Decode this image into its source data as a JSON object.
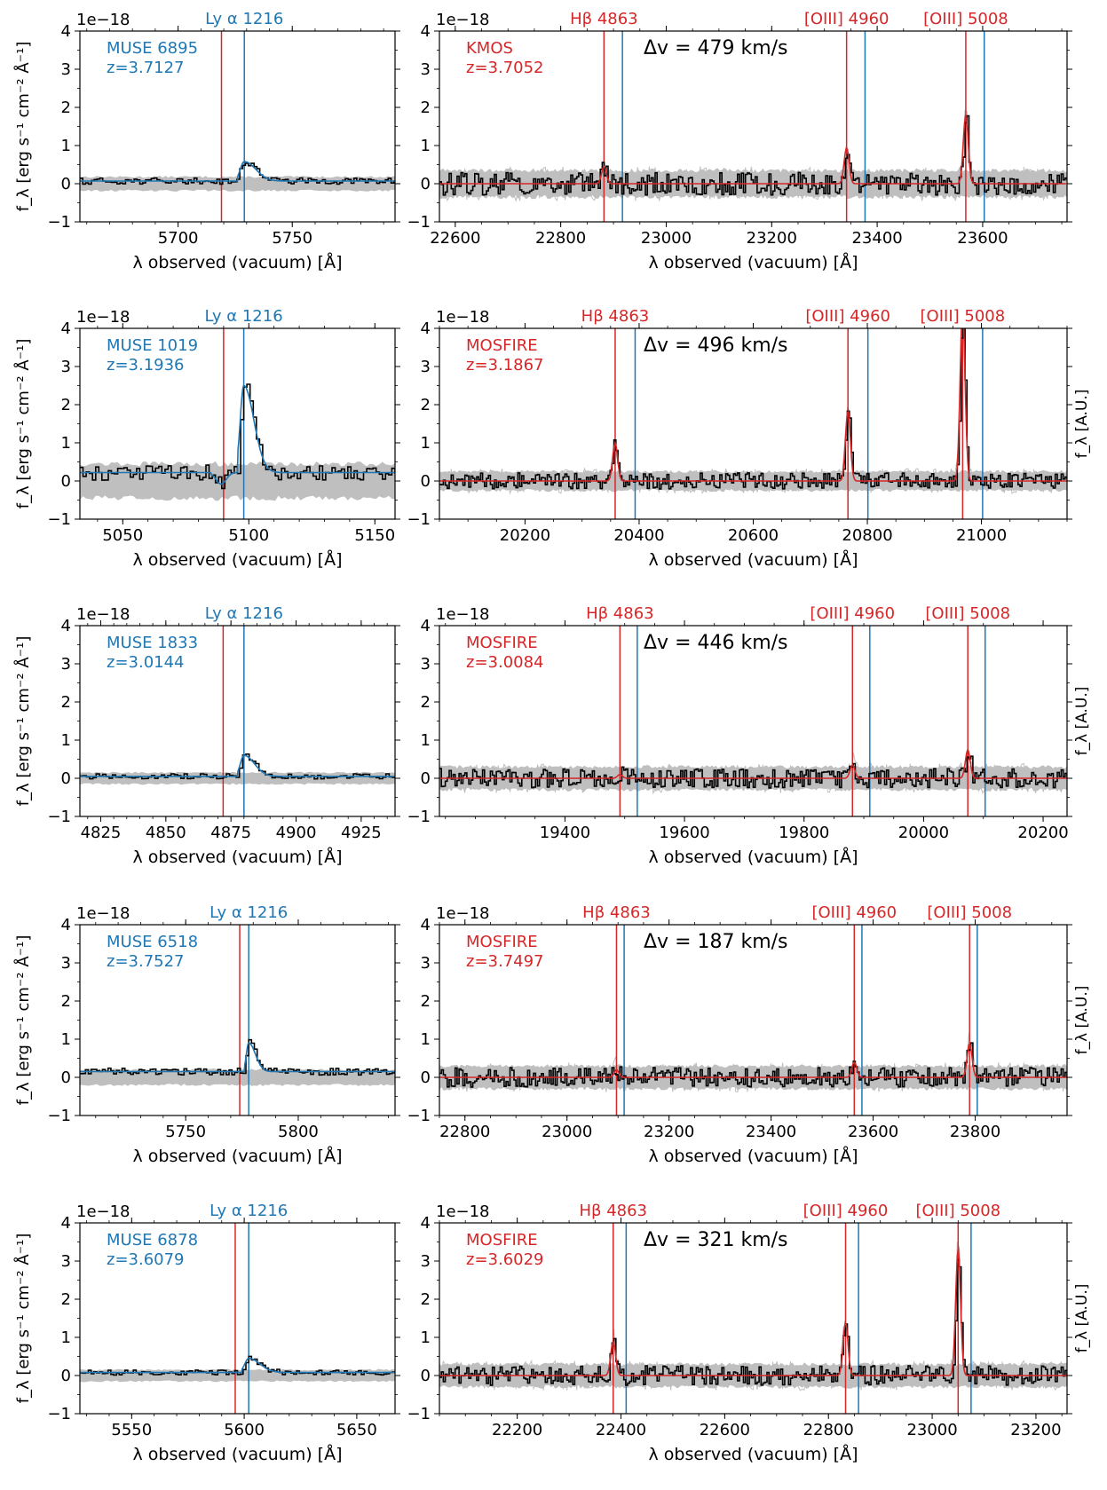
{
  "figure": {
    "x_axis_label": "λ observed (vacuum) [Å]",
    "y_axis_label_left": "f_λ [erg s⁻¹ cm⁻² Å⁻¹]",
    "y_axis_label_right": "f_λ [A.U.]",
    "offset_text": "1e−18",
    "colors": {
      "muse": "#1f77b4",
      "nir": "#d62728",
      "data": "#000000",
      "noise": "#bfbfbf"
    }
  },
  "chart_data": [
    {
      "type": "line",
      "row": 1,
      "panel": "left",
      "instrument": "MUSE 6895",
      "redshift": "z=3.7127",
      "line_label": "Ly α 1216",
      "xlim": [
        5657,
        5795
      ],
      "ylim": [
        -1,
        4
      ],
      "xticks": [
        5700,
        5750
      ],
      "yticks": [
        -1,
        0,
        1,
        2,
        3,
        4
      ],
      "ly_alpha_obs": 5729,
      "systemic_line": 5719,
      "peak": {
        "x": 5729,
        "y": 0.58,
        "width": 5
      },
      "continuum": 0.07,
      "noise_level": 0.18,
      "xlabel": "λ observed (vacuum) [Å]",
      "ylabel": "f_λ [erg s⁻¹ cm⁻² Å⁻¹]"
    },
    {
      "type": "line",
      "row": 1,
      "panel": "right",
      "instrument": "KMOS",
      "redshift": "z=3.7052",
      "delta_v": "Δv = 479 km/s",
      "line_labels": [
        "Hβ 4863",
        "[OIII] 4960",
        "[OIII] 5008"
      ],
      "xlim": [
        22570,
        23760
      ],
      "ylim": [
        -1,
        4
      ],
      "xticks": [
        22600,
        22800,
        23000,
        23200,
        23400,
        23600
      ],
      "yticks": [
        -1,
        0,
        1,
        2,
        3,
        4
      ],
      "red_lines": [
        22882,
        23342,
        23568
      ],
      "blue_lines": [
        22917,
        23377,
        23603
      ],
      "peaks": [
        {
          "x": 22882,
          "y": 0.45
        },
        {
          "x": 23342,
          "y": 0.95
        },
        {
          "x": 23568,
          "y": 1.8
        }
      ],
      "noise_level": 0.35,
      "xlabel": "λ observed (vacuum) [Å]"
    },
    {
      "type": "line",
      "row": 2,
      "panel": "left",
      "instrument": "MUSE 1019",
      "redshift": "z=3.1936",
      "line_label": "Ly α 1216",
      "xlim": [
        5033,
        5158
      ],
      "ylim": [
        -1,
        4
      ],
      "xticks": [
        5050,
        5100,
        5150
      ],
      "yticks": [
        -1,
        0,
        1,
        2,
        3,
        4
      ],
      "ly_alpha_obs": 5098,
      "systemic_line": 5090,
      "peak": {
        "x": 5098,
        "y": 2.5,
        "width": 4
      },
      "continuum": 0.22,
      "noise_level": 0.45,
      "xlabel": "λ observed (vacuum) [Å]",
      "ylabel": "f_λ [erg s⁻¹ cm⁻² Å⁻¹]"
    },
    {
      "type": "line",
      "row": 2,
      "panel": "right",
      "instrument": "MOSFIRE",
      "redshift": "z=3.1867",
      "delta_v": "Δv = 496 km/s",
      "line_labels": [
        "Hβ 4863",
        "[OIII] 4960",
        "[OIII] 5008"
      ],
      "xlim": [
        20050,
        21150
      ],
      "ylim": [
        -1,
        4
      ],
      "xticks": [
        20200,
        20400,
        20600,
        20800,
        21000
      ],
      "yticks": [
        -1,
        0,
        1,
        2,
        3,
        4
      ],
      "red_lines": [
        20358,
        20766,
        20967
      ],
      "blue_lines": [
        20393,
        20801,
        21002
      ],
      "peaks": [
        {
          "x": 20358,
          "y": 1.0
        },
        {
          "x": 20766,
          "y": 1.85
        },
        {
          "x": 20967,
          "y": 4.6
        }
      ],
      "noise_level": 0.25,
      "xlabel": "λ observed (vacuum) [Å]",
      "ylabel_right": "f_λ [A.U.]"
    },
    {
      "type": "line",
      "row": 3,
      "panel": "left",
      "instrument": "MUSE 1833",
      "redshift": "z=3.0144",
      "line_label": "Ly α 1216",
      "xlim": [
        4817,
        4938
      ],
      "ylim": [
        -1,
        4
      ],
      "xticks": [
        4825,
        4850,
        4875,
        4900,
        4925
      ],
      "yticks": [
        -1,
        0,
        1,
        2,
        3,
        4
      ],
      "ly_alpha_obs": 4880,
      "systemic_line": 4872,
      "peak": {
        "x": 4880,
        "y": 0.6,
        "width": 4
      },
      "continuum": 0.05,
      "noise_level": 0.15,
      "xlabel": "λ observed (vacuum) [Å]",
      "ylabel": "f_λ [erg s⁻¹ cm⁻² Å⁻¹]"
    },
    {
      "type": "line",
      "row": 3,
      "panel": "right",
      "instrument": "MOSFIRE",
      "redshift": "z=3.0084",
      "delta_v": "Δv = 446 km/s",
      "line_labels": [
        "Hβ 4863",
        "[OIII] 4960",
        "[OIII] 5008"
      ],
      "xlim": [
        19190,
        20240
      ],
      "ylim": [
        -1,
        4
      ],
      "xticks": [
        19400,
        19600,
        19800,
        20000,
        20200
      ],
      "yticks": [
        -1,
        0,
        1,
        2,
        3,
        4
      ],
      "red_lines": [
        19492,
        19881,
        20074
      ],
      "blue_lines": [
        19521,
        19910,
        20103
      ],
      "peaks": [
        {
          "x": 19492,
          "y": 0.1
        },
        {
          "x": 19881,
          "y": 0.35
        },
        {
          "x": 20074,
          "y": 0.75
        }
      ],
      "noise_level": 0.3,
      "xlabel": "λ observed (vacuum) [Å]",
      "ylabel_right": "f_λ [A.U.]"
    },
    {
      "type": "line",
      "row": 4,
      "panel": "left",
      "instrument": "MUSE 6518",
      "redshift": "z=3.7527",
      "line_label": "Ly α 1216",
      "xlim": [
        5703,
        5843
      ],
      "ylim": [
        -1,
        4
      ],
      "xticks": [
        5750,
        5800
      ],
      "yticks": [
        -1,
        0,
        1,
        2,
        3,
        4
      ],
      "ly_alpha_obs": 5778,
      "systemic_line": 5774,
      "peak": {
        "x": 5778,
        "y": 0.9,
        "width": 3
      },
      "continuum": 0.15,
      "noise_level": 0.2,
      "xlabel": "λ observed (vacuum) [Å]",
      "ylabel": "f_λ [erg s⁻¹ cm⁻² Å⁻¹]"
    },
    {
      "type": "line",
      "row": 4,
      "panel": "right",
      "instrument": "MOSFIRE",
      "redshift": "z=3.7497",
      "delta_v": "Δv = 187 km/s",
      "line_labels": [
        "Hβ 4863",
        "[OIII] 4960",
        "[OIII] 5008"
      ],
      "xlim": [
        22750,
        23980
      ],
      "ylim": [
        -1,
        4
      ],
      "xticks": [
        22800,
        23000,
        23200,
        23400,
        23600,
        23800
      ],
      "yticks": [
        -1,
        0,
        1,
        2,
        3,
        4
      ],
      "red_lines": [
        23097,
        23563,
        23789
      ],
      "blue_lines": [
        23112,
        23578,
        23804
      ],
      "peaks": [
        {
          "x": 23097,
          "y": 0.2
        },
        {
          "x": 23563,
          "y": 0.4
        },
        {
          "x": 23789,
          "y": 0.9
        }
      ],
      "noise_level": 0.3,
      "xlabel": "λ observed (vacuum) [Å]",
      "ylabel_right": "f_λ [A.U.]"
    },
    {
      "type": "line",
      "row": 5,
      "panel": "left",
      "instrument": "MUSE 6878",
      "redshift": "z=3.6079",
      "line_label": "Ly α 1216",
      "xlim": [
        5527,
        5667
      ],
      "ylim": [
        -1,
        4
      ],
      "xticks": [
        5550,
        5600,
        5650
      ],
      "yticks": [
        -1,
        0,
        1,
        2,
        3,
        4
      ],
      "ly_alpha_obs": 5602,
      "systemic_line": 5596,
      "peak": {
        "x": 5602,
        "y": 0.45,
        "width": 5
      },
      "continuum": 0.08,
      "noise_level": 0.15,
      "xlabel": "λ observed (vacuum) [Å]",
      "ylabel": "f_λ [erg s⁻¹ cm⁻² Å⁻¹]"
    },
    {
      "type": "line",
      "row": 5,
      "panel": "right",
      "instrument": "MOSFIRE",
      "redshift": "z=3.6029",
      "delta_v": "Δv = 321 km/s",
      "line_labels": [
        "Hβ 4863",
        "[OIII] 4960",
        "[OIII] 5008"
      ],
      "xlim": [
        22050,
        23260
      ],
      "ylim": [
        -1,
        4
      ],
      "xticks": [
        22200,
        22400,
        22600,
        22800,
        23000,
        23200
      ],
      "yticks": [
        -1,
        0,
        1,
        2,
        3,
        4
      ],
      "red_lines": [
        22385,
        22833,
        23050
      ],
      "blue_lines": [
        22410,
        22858,
        23075
      ],
      "peaks": [
        {
          "x": 22385,
          "y": 0.9
        },
        {
          "x": 22833,
          "y": 1.4
        },
        {
          "x": 23050,
          "y": 3.35
        }
      ],
      "noise_level": 0.3,
      "xlabel": "λ observed (vacuum) [Å]",
      "ylabel_right": "f_λ [A.U.]"
    }
  ]
}
